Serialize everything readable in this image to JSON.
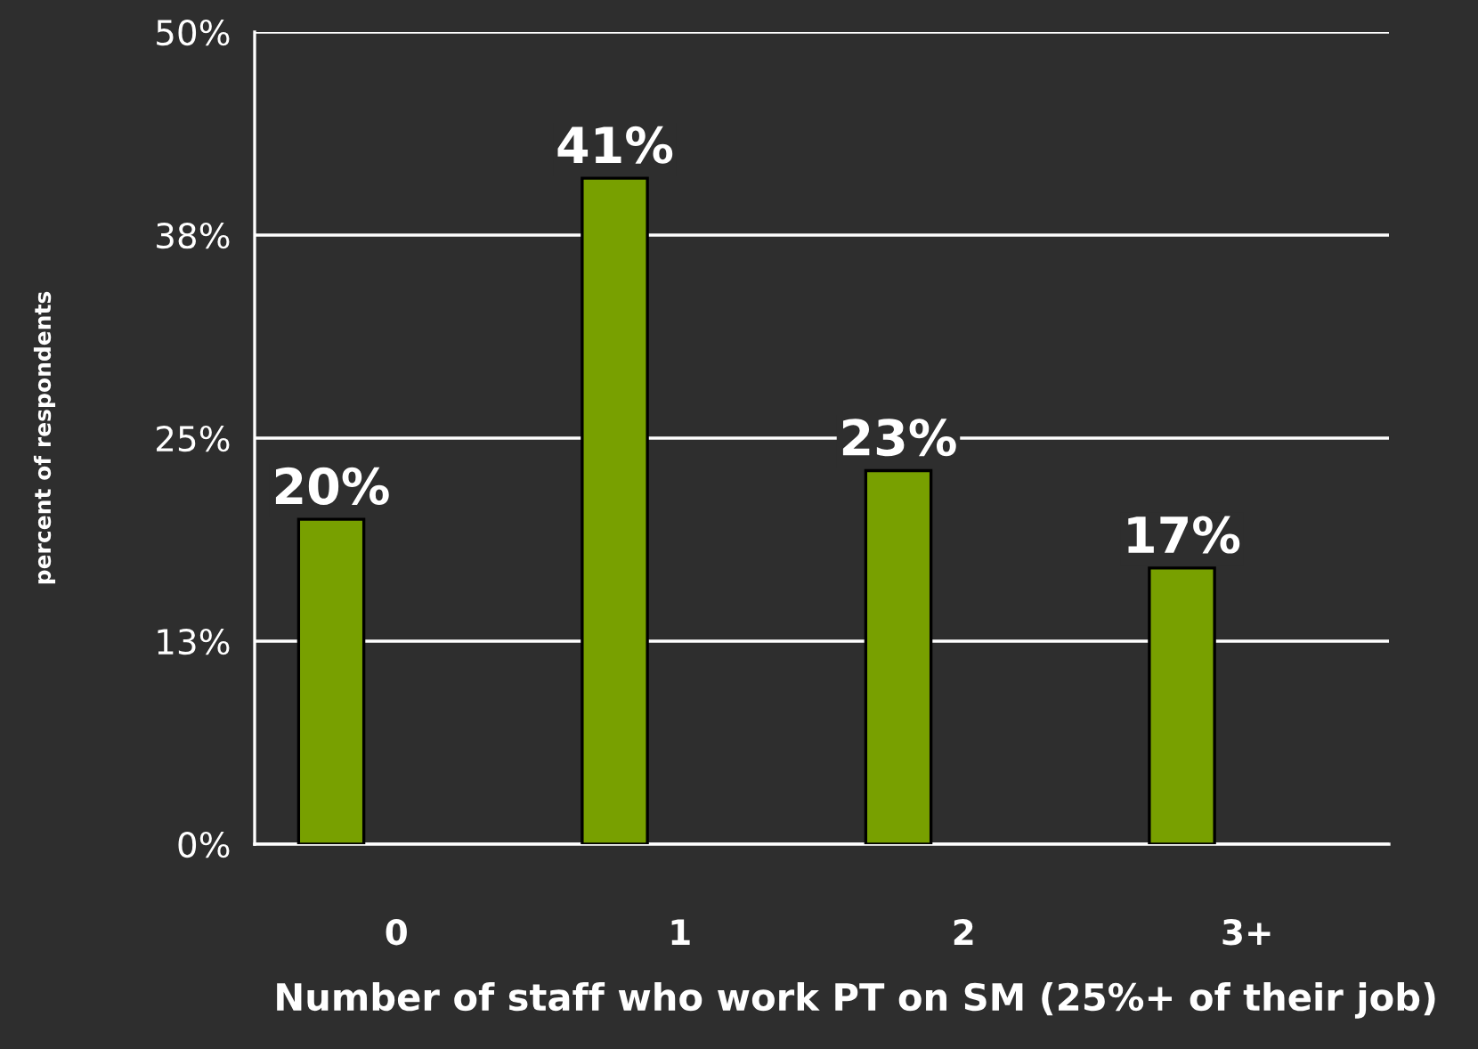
{
  "chart_data": {
    "type": "bar",
    "xlabel": "Number of staff who work PT on SM (25%+ of their job)",
    "ylabel": "percent of respondents",
    "categories": [
      "0",
      "1",
      "2",
      "3+"
    ],
    "values": [
      20,
      41,
      23,
      17
    ],
    "value_labels": [
      "20%",
      "41%",
      "23%",
      "17%"
    ],
    "color": "#78a000",
    "ylim": [
      0,
      50
    ],
    "yticks": [
      {
        "value": 0,
        "label": "0%"
      },
      {
        "value": 12.5,
        "label": "13%"
      },
      {
        "value": 25,
        "label": "25%"
      },
      {
        "value": 37.5,
        "label": "38%"
      },
      {
        "value": 50,
        "label": "50%"
      }
    ],
    "grid": "y",
    "legend": false
  }
}
